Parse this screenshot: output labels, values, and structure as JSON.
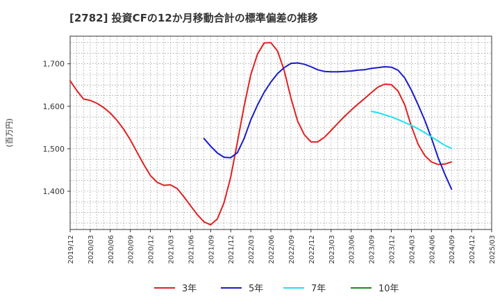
{
  "chart_data": {
    "type": "line",
    "title": "[2782]  投資CFの12か月移動合計の標準偏差の推移",
    "ylabel": "(百万円)",
    "xlabel": "",
    "ylim": [
      1310,
      1765
    ],
    "yticks": [
      1400,
      1500,
      1600,
      1700
    ],
    "ytick_labels": [
      "1,400",
      "1,500",
      "1,600",
      "1,700"
    ],
    "x_range": [
      "2019/12",
      "2025/03"
    ],
    "xtick_labels": [
      "2019/12",
      "2020/03",
      "2020/06",
      "2020/09",
      "2020/12",
      "2021/03",
      "2021/06",
      "2021/09",
      "2021/12",
      "2022/03",
      "2022/06",
      "2022/09",
      "2022/12",
      "2023/03",
      "2023/06",
      "2023/09",
      "2023/12",
      "2024/03",
      "2024/06",
      "2024/09",
      "2024/12",
      "2025/03"
    ],
    "grid": true,
    "legend_position": "bottom",
    "series": [
      {
        "name": "3年",
        "color": "#e02020",
        "points": [
          [
            "2019/12",
            1660
          ],
          [
            "2020/01",
            1637
          ],
          [
            "2020/02",
            1617
          ],
          [
            "2020/03",
            1614
          ],
          [
            "2020/04",
            1607
          ],
          [
            "2020/05",
            1597
          ],
          [
            "2020/06",
            1584
          ],
          [
            "2020/07",
            1567
          ],
          [
            "2020/08",
            1546
          ],
          [
            "2020/09",
            1521
          ],
          [
            "2020/10",
            1492
          ],
          [
            "2020/11",
            1463
          ],
          [
            "2020/12",
            1437
          ],
          [
            "2021/01",
            1421
          ],
          [
            "2021/02",
            1414
          ],
          [
            "2021/03",
            1415
          ],
          [
            "2021/04",
            1406
          ],
          [
            "2021/05",
            1387
          ],
          [
            "2021/06",
            1366
          ],
          [
            "2021/07",
            1345
          ],
          [
            "2021/08",
            1328
          ],
          [
            "2021/09",
            1321
          ],
          [
            "2021/10",
            1335
          ],
          [
            "2021/11",
            1373
          ],
          [
            "2021/12",
            1433
          ],
          [
            "2022/01",
            1516
          ],
          [
            "2022/02",
            1600
          ],
          [
            "2022/03",
            1674
          ],
          [
            "2022/04",
            1723
          ],
          [
            "2022/05",
            1749
          ],
          [
            "2022/06",
            1750
          ],
          [
            "2022/07",
            1730
          ],
          [
            "2022/08",
            1684
          ],
          [
            "2022/09",
            1619
          ],
          [
            "2022/10",
            1565
          ],
          [
            "2022/11",
            1533
          ],
          [
            "2022/12",
            1516
          ],
          [
            "2023/01",
            1516
          ],
          [
            "2023/02",
            1527
          ],
          [
            "2023/03",
            1543
          ],
          [
            "2023/04",
            1560
          ],
          [
            "2023/05",
            1576
          ],
          [
            "2023/06",
            1591
          ],
          [
            "2023/07",
            1605
          ],
          [
            "2023/08",
            1618
          ],
          [
            "2023/09",
            1632
          ],
          [
            "2023/10",
            1645
          ],
          [
            "2023/11",
            1652
          ],
          [
            "2023/12",
            1651
          ],
          [
            "2024/01",
            1636
          ],
          [
            "2024/02",
            1604
          ],
          [
            "2024/03",
            1553
          ],
          [
            "2024/04",
            1511
          ],
          [
            "2024/05",
            1484
          ],
          [
            "2024/06",
            1469
          ],
          [
            "2024/07",
            1463
          ],
          [
            "2024/08",
            1464
          ],
          [
            "2024/09",
            1469
          ]
        ]
      },
      {
        "name": "5年",
        "color": "#1a1aca",
        "points": [
          [
            "2021/08",
            1524
          ],
          [
            "2021/09",
            1506
          ],
          [
            "2021/10",
            1490
          ],
          [
            "2021/11",
            1480
          ],
          [
            "2021/12",
            1479
          ],
          [
            "2022/01",
            1491
          ],
          [
            "2022/02",
            1524
          ],
          [
            "2022/03",
            1568
          ],
          [
            "2022/04",
            1603
          ],
          [
            "2022/05",
            1633
          ],
          [
            "2022/06",
            1657
          ],
          [
            "2022/07",
            1677
          ],
          [
            "2022/08",
            1691
          ],
          [
            "2022/09",
            1701
          ],
          [
            "2022/10",
            1702
          ],
          [
            "2022/11",
            1699
          ],
          [
            "2022/12",
            1693
          ],
          [
            "2023/01",
            1686
          ],
          [
            "2023/02",
            1682
          ],
          [
            "2023/03",
            1681
          ],
          [
            "2023/04",
            1681
          ],
          [
            "2023/05",
            1682
          ],
          [
            "2023/06",
            1683
          ],
          [
            "2023/07",
            1685
          ],
          [
            "2023/08",
            1686
          ],
          [
            "2023/09",
            1689
          ],
          [
            "2023/10",
            1691
          ],
          [
            "2023/11",
            1693
          ],
          [
            "2023/12",
            1692
          ],
          [
            "2024/01",
            1685
          ],
          [
            "2024/02",
            1667
          ],
          [
            "2024/03",
            1638
          ],
          [
            "2024/04",
            1604
          ],
          [
            "2024/05",
            1567
          ],
          [
            "2024/06",
            1525
          ],
          [
            "2024/07",
            1479
          ],
          [
            "2024/08",
            1440
          ],
          [
            "2024/09",
            1405
          ]
        ]
      },
      {
        "name": "7年",
        "color": "#20e0f0",
        "points": [
          [
            "2023/09",
            1588
          ],
          [
            "2023/10",
            1585
          ],
          [
            "2023/11",
            1580
          ],
          [
            "2023/12",
            1575
          ],
          [
            "2024/01",
            1569
          ],
          [
            "2024/02",
            1562
          ],
          [
            "2024/03",
            1555
          ],
          [
            "2024/04",
            1547
          ],
          [
            "2024/05",
            1538
          ],
          [
            "2024/06",
            1528
          ],
          [
            "2024/07",
            1518
          ],
          [
            "2024/08",
            1508
          ],
          [
            "2024/09",
            1501
          ]
        ]
      },
      {
        "name": "10年",
        "color": "#1a8a1a",
        "points": []
      }
    ]
  }
}
